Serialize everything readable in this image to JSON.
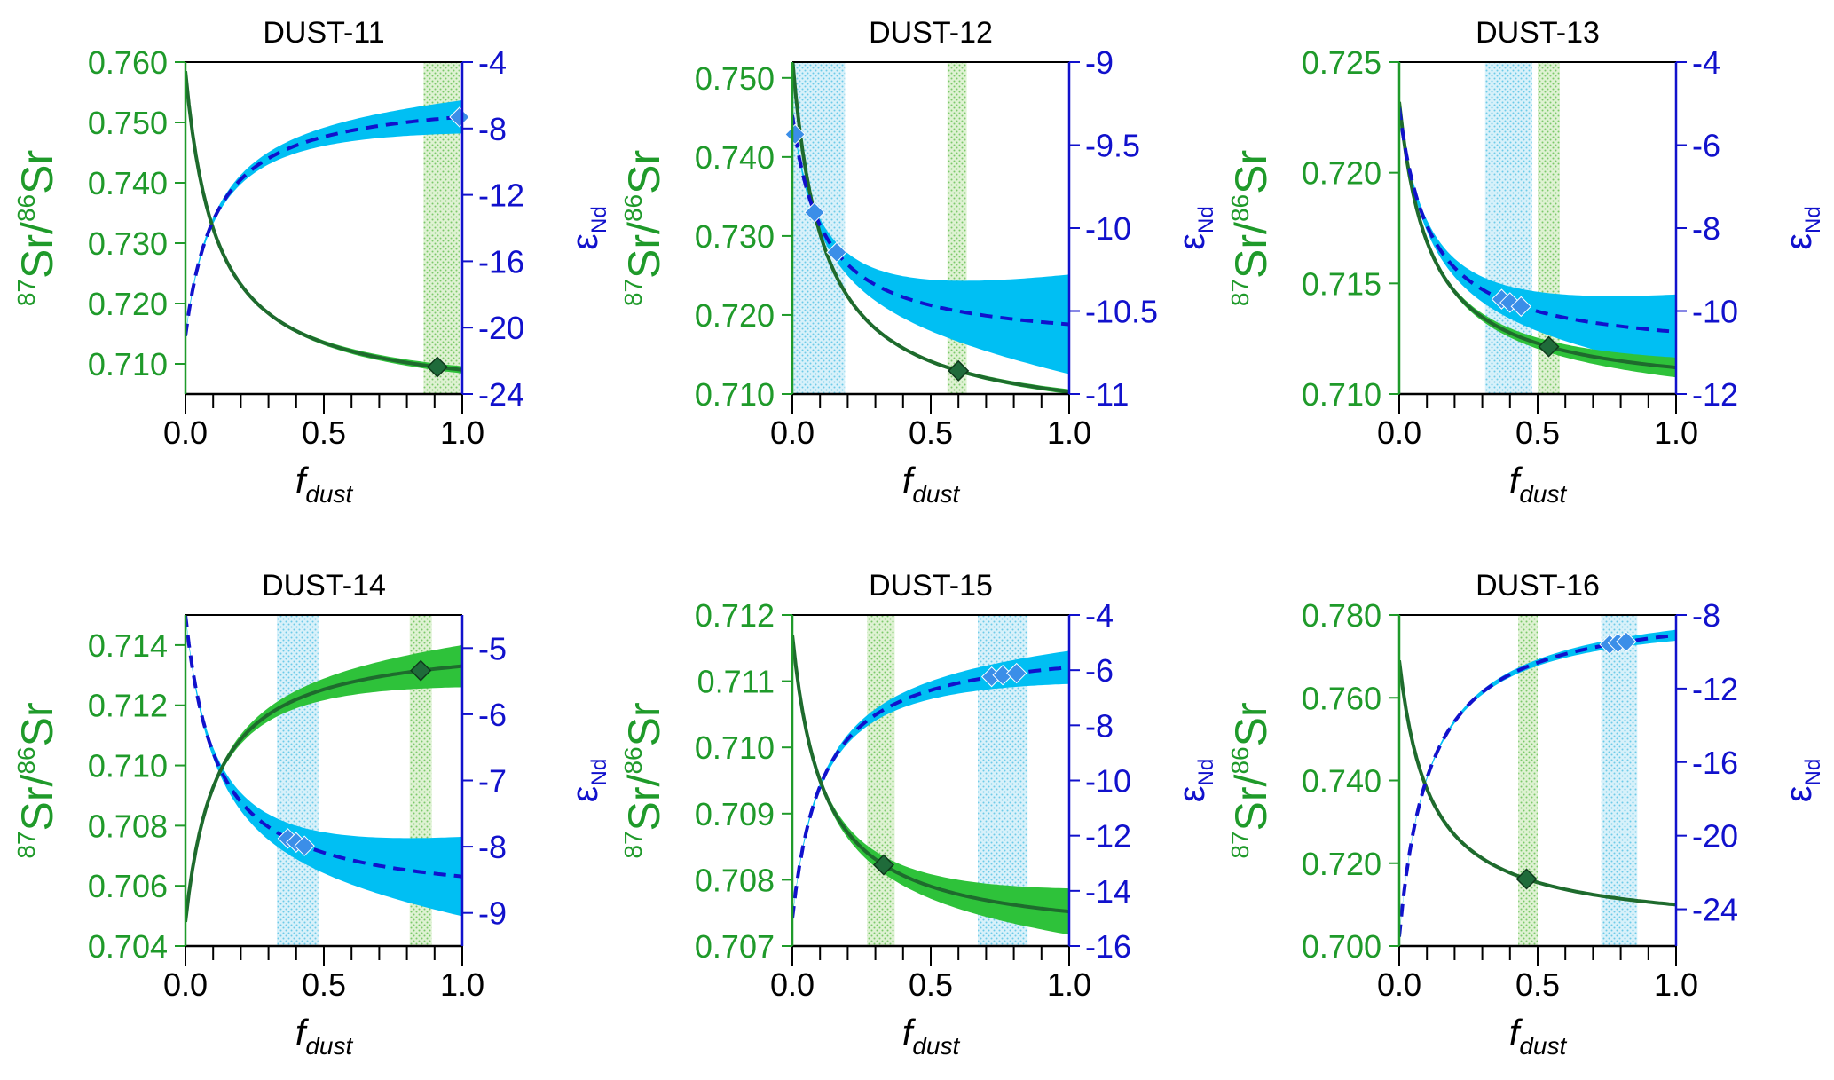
{
  "colors": {
    "sr": "#1f9a2a",
    "sr_dark": "#1e6b2d",
    "sr_band": "#2ec23a",
    "nd": "#1111cc",
    "nd_band": "#00bff3",
    "nd_marker": "#3b8ee8",
    "sr_marker": "#1f6b3a",
    "green_range": "#8fd47a",
    "blue_range": "#8ad8ee"
  },
  "chart_data": [
    {
      "type": "line",
      "title": "DUST-11",
      "xlabel": "f",
      "xlabel_sub": "dust",
      "ylabel_left": "Sr/Sr",
      "ylabel_left_sup1": "87",
      "ylabel_left_sup2": "86",
      "ylabel_right": "ε",
      "ylabel_right_sub": "Nd",
      "xlim": [
        0,
        1
      ],
      "x_ticks": [
        "0.0",
        "0.5",
        "1.0"
      ],
      "sr_lim": [
        0.705,
        0.76
      ],
      "sr_ticks": [
        "0.710",
        "0.720",
        "0.730",
        "0.740",
        "0.750",
        "0.760"
      ],
      "nd_lim": [
        -24,
        -4
      ],
      "nd_ticks": [
        "-24",
        "-20",
        "-16",
        "-12",
        "-8",
        "-4"
      ],
      "sr_end": [
        0.7585,
        0.709
      ],
      "sr_band": [
        0.00015,
        0.0006
      ],
      "nd_end": [
        -20.5,
        -7.3
      ],
      "nd_band": [
        0.1,
        1.0
      ],
      "green_range": [
        0.86,
        0.99
      ],
      "blue_range": null,
      "sr_marker": [
        0.91
      ],
      "nd_markers": [
        0.99
      ]
    },
    {
      "type": "line",
      "title": "DUST-12",
      "xlabel": "f",
      "xlabel_sub": "dust",
      "ylabel_left": "Sr/Sr",
      "ylabel_left_sup1": "87",
      "ylabel_left_sup2": "86",
      "ylabel_right": "ε",
      "ylabel_right_sub": "Nd",
      "xlim": [
        0,
        1
      ],
      "x_ticks": [
        "0.0",
        "0.5",
        "1.0"
      ],
      "sr_lim": [
        0.71,
        0.752
      ],
      "sr_ticks": [
        "0.710",
        "0.720",
        "0.730",
        "0.740",
        "0.750"
      ],
      "nd_lim": [
        -11,
        -9
      ],
      "nd_ticks": [
        "-11",
        "-10.5",
        "-10",
        "-9.5",
        "-9"
      ],
      "sr_end": [
        0.7525,
        0.7103
      ],
      "sr_band": [
        0.00015,
        0.0003
      ],
      "nd_end": [
        -9.32,
        -10.58
      ],
      "nd_band": [
        0.01,
        0.3
      ],
      "green_range": [
        0.56,
        0.63
      ],
      "blue_range": [
        0.0,
        0.19
      ],
      "sr_marker": [
        0.6
      ],
      "nd_markers": [
        0.01,
        0.08,
        0.16
      ]
    },
    {
      "type": "line",
      "title": "DUST-13",
      "xlabel": "f",
      "xlabel_sub": "dust",
      "ylabel_left": "Sr/Sr",
      "ylabel_left_sup1": "87",
      "ylabel_left_sup2": "86",
      "ylabel_right": "ε",
      "ylabel_right_sub": "Nd",
      "xlim": [
        0,
        1
      ],
      "x_ticks": [
        "0.0",
        "0.5",
        "1.0"
      ],
      "sr_lim": [
        0.71,
        0.725
      ],
      "sr_ticks": [
        "0.710",
        "0.715",
        "0.720",
        "0.725"
      ],
      "nd_lim": [
        -12,
        -4
      ],
      "nd_ticks": [
        "-12",
        "-10",
        "-8",
        "-6",
        "-4"
      ],
      "sr_end": [
        0.7232,
        0.7112
      ],
      "sr_band": [
        5e-05,
        0.00045
      ],
      "nd_end": [
        -5.1,
        -10.5
      ],
      "nd_band": [
        0.05,
        0.9
      ],
      "green_range": [
        0.5,
        0.58
      ],
      "blue_range": [
        0.31,
        0.48
      ],
      "sr_marker": [
        0.54
      ],
      "nd_markers": [
        0.37,
        0.4,
        0.44
      ]
    },
    {
      "type": "line",
      "title": "DUST-14",
      "xlabel": "f",
      "xlabel_sub": "dust",
      "ylabel_left": "Sr/Sr",
      "ylabel_left_sup1": "87",
      "ylabel_left_sup2": "86",
      "ylabel_right": "ε",
      "ylabel_right_sub": "Nd",
      "xlim": [
        0,
        1
      ],
      "x_ticks": [
        "0.0",
        "0.5",
        "1.0"
      ],
      "sr_lim": [
        0.704,
        0.715
      ],
      "sr_ticks": [
        "0.704",
        "0.706",
        "0.708",
        "0.710",
        "0.712",
        "0.714"
      ],
      "nd_lim": [
        -9.5,
        -4.5
      ],
      "nd_ticks": [
        "-9",
        "-8",
        "-7",
        "-6",
        "-5"
      ],
      "sr_end": [
        0.7048,
        0.7133
      ],
      "sr_band": [
        2e-05,
        0.0007
      ],
      "nd_end": [
        -4.5,
        -8.45
      ],
      "nd_band": [
        0.02,
        0.6
      ],
      "green_range": [
        0.81,
        0.89
      ],
      "blue_range": [
        0.33,
        0.48
      ],
      "sr_marker": [
        0.85
      ],
      "nd_markers": [
        0.37,
        0.4,
        0.43
      ]
    },
    {
      "type": "line",
      "title": "DUST-15",
      "xlabel": "f",
      "xlabel_sub": "dust",
      "ylabel_left": "Sr/Sr",
      "ylabel_left_sup1": "87",
      "ylabel_left_sup2": "86",
      "ylabel_right": "ε",
      "ylabel_right_sub": "Nd",
      "xlim": [
        0,
        1
      ],
      "x_ticks": [
        "0.0",
        "0.5",
        "1.0"
      ],
      "sr_lim": [
        0.707,
        0.712
      ],
      "sr_ticks": [
        "0.707",
        "0.708",
        "0.709",
        "0.710",
        "0.711",
        "0.712"
      ],
      "nd_lim": [
        -16,
        -4
      ],
      "nd_ticks": [
        "-16",
        "-14",
        "-12",
        "-10",
        "-8",
        "-6",
        "-4"
      ],
      "sr_end": [
        0.7117,
        0.70752
      ],
      "sr_band": [
        2e-05,
        0.00035
      ],
      "nd_end": [
        -15.0,
        -5.9
      ],
      "nd_band": [
        0.05,
        0.6
      ],
      "green_range": [
        0.27,
        0.37
      ],
      "blue_range": [
        0.67,
        0.85
      ],
      "sr_marker": [
        0.33
      ],
      "nd_markers": [
        0.72,
        0.76,
        0.81
      ]
    },
    {
      "type": "line",
      "title": "DUST-16",
      "xlabel": "f",
      "xlabel_sub": "dust",
      "ylabel_left": "Sr/Sr",
      "ylabel_left_sup1": "87",
      "ylabel_left_sup2": "86",
      "ylabel_right": "ε",
      "ylabel_right_sub": "Nd",
      "xlim": [
        0,
        1
      ],
      "x_ticks": [
        "0.0",
        "0.5",
        "1.0"
      ],
      "sr_lim": [
        0.7,
        0.78
      ],
      "sr_ticks": [
        "0.700",
        "0.720",
        "0.740",
        "0.760",
        "0.780"
      ],
      "nd_lim": [
        -26,
        -8
      ],
      "nd_ticks": [
        "-24",
        "-20",
        "-16",
        "-12",
        "-8"
      ],
      "sr_end": [
        0.769,
        0.71
      ],
      "sr_band": [
        0.0001,
        0.0003
      ],
      "nd_end": [
        -25.5,
        -9.1
      ],
      "nd_band": [
        0.05,
        0.3
      ],
      "green_range": [
        0.43,
        0.5
      ],
      "blue_range": [
        0.73,
        0.86
      ],
      "sr_marker": [
        0.46
      ],
      "nd_markers": [
        0.76,
        0.79,
        0.82
      ]
    }
  ]
}
